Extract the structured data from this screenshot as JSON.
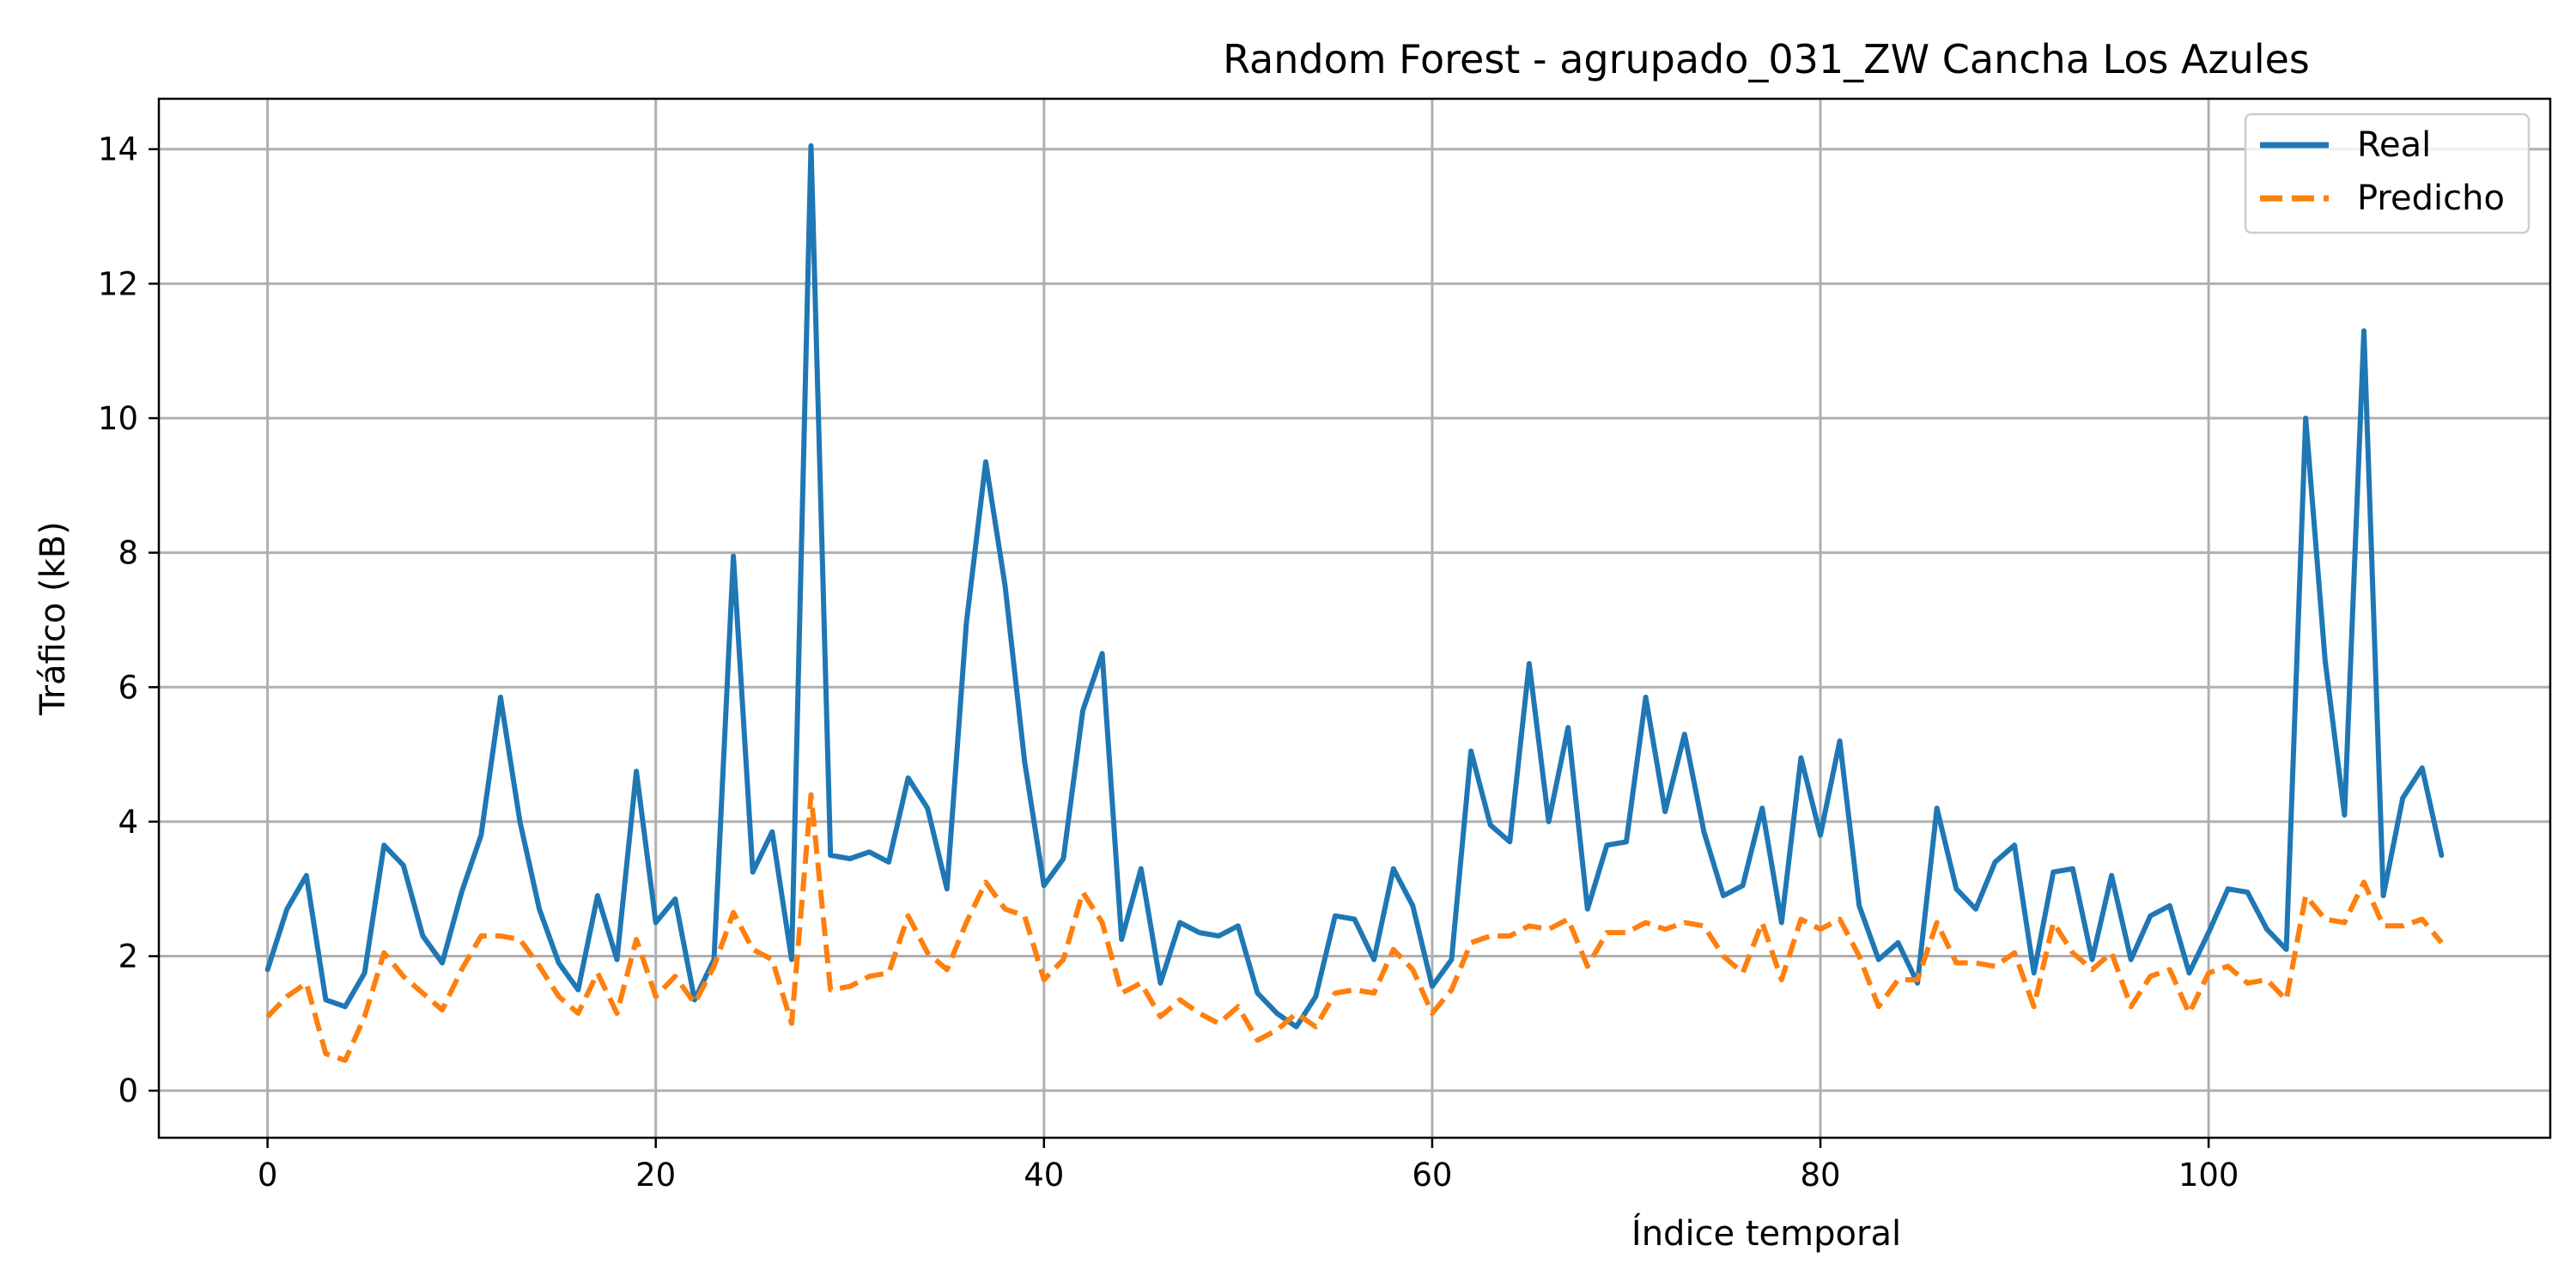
{
  "chart_data": {
    "type": "line",
    "title": "Random Forest - agrupado_031_ZW Cancha Los Azules",
    "xlabel": "Índice temporal",
    "ylabel": "Tráfico (kB)",
    "xlim": [
      -5.6,
      117.6
    ],
    "ylim": [
      -0.7,
      14.75
    ],
    "xticks": [
      0,
      20,
      40,
      60,
      80,
      100
    ],
    "xtick_labels": [
      "0",
      "20",
      "40",
      "60",
      "80",
      "100"
    ],
    "yticks": [
      0,
      2,
      4,
      6,
      8,
      10,
      12,
      14
    ],
    "ytick_labels": [
      "0",
      "2",
      "4",
      "6",
      "8",
      "10",
      "12",
      "14"
    ],
    "grid": true,
    "legend_position": "top-right",
    "series": [
      {
        "name": "Real",
        "color": "#1f77b4",
        "style": "solid",
        "values": [
          1.8,
          2.7,
          3.2,
          1.35,
          1.25,
          1.75,
          3.65,
          3.35,
          2.3,
          1.9,
          2.95,
          3.8,
          5.85,
          4.0,
          2.7,
          1.9,
          1.5,
          2.9,
          1.95,
          4.75,
          2.5,
          2.85,
          1.35,
          1.95,
          7.95,
          3.25,
          3.85,
          1.95,
          14.05,
          3.5,
          3.45,
          3.55,
          3.4,
          4.65,
          4.2,
          3.0,
          6.95,
          9.35,
          7.5,
          4.9,
          3.05,
          3.45,
          5.65,
          6.5,
          2.25,
          3.3,
          1.6,
          2.5,
          2.35,
          2.3,
          2.45,
          1.45,
          1.15,
          0.95,
          1.4,
          2.6,
          2.55,
          1.95,
          3.3,
          2.75,
          1.55,
          1.95,
          5.05,
          3.95,
          3.7,
          6.35,
          4.0,
          5.4,
          2.7,
          3.65,
          3.7,
          5.85,
          4.15,
          5.3,
          3.85,
          2.9,
          3.05,
          4.2,
          2.5,
          4.95,
          3.8,
          5.2,
          2.75,
          1.95,
          2.2,
          1.6,
          4.2,
          3.0,
          2.7,
          3.4,
          3.65,
          1.75,
          3.25,
          3.3,
          1.95,
          3.2,
          1.95,
          2.6,
          2.75,
          1.75,
          2.35,
          3.0,
          2.95,
          2.4,
          2.1,
          10.0,
          6.4,
          4.1,
          11.3,
          2.9,
          4.35,
          4.8,
          3.5
        ]
      },
      {
        "name": "Predicho",
        "color": "#ff7f0e",
        "style": "dashed",
        "values": [
          1.1,
          1.4,
          1.6,
          0.55,
          0.45,
          1.1,
          2.05,
          1.7,
          1.45,
          1.2,
          1.8,
          2.3,
          2.3,
          2.25,
          1.85,
          1.4,
          1.15,
          1.75,
          1.15,
          2.25,
          1.4,
          1.7,
          1.3,
          1.85,
          2.65,
          2.1,
          1.95,
          1.0,
          4.4,
          1.5,
          1.55,
          1.7,
          1.75,
          2.6,
          2.05,
          1.8,
          2.5,
          3.1,
          2.7,
          2.6,
          1.65,
          1.95,
          2.95,
          2.5,
          1.45,
          1.6,
          1.1,
          1.35,
          1.15,
          1.0,
          1.25,
          0.75,
          0.9,
          1.15,
          0.95,
          1.45,
          1.5,
          1.45,
          2.1,
          1.8,
          1.15,
          1.5,
          2.2,
          2.3,
          2.3,
          2.45,
          2.4,
          2.55,
          1.85,
          2.35,
          2.35,
          2.5,
          2.4,
          2.5,
          2.45,
          2.0,
          1.75,
          2.5,
          1.65,
          2.55,
          2.4,
          2.55,
          2.0,
          1.25,
          1.65,
          1.65,
          2.5,
          1.9,
          1.9,
          1.85,
          2.05,
          1.25,
          2.5,
          2.05,
          1.8,
          2.05,
          1.25,
          1.7,
          1.8,
          1.15,
          1.75,
          1.85,
          1.6,
          1.65,
          1.35,
          2.9,
          2.55,
          2.5,
          3.1,
          2.45,
          2.45,
          2.55,
          2.2
        ]
      }
    ]
  }
}
